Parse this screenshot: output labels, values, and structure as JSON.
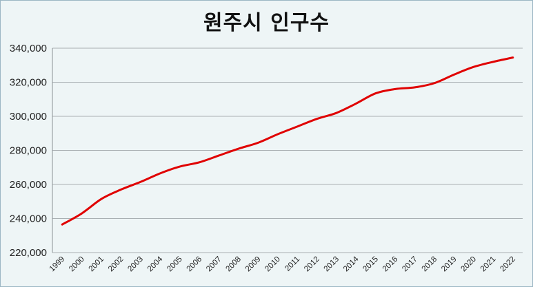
{
  "chart_data": {
    "type": "line",
    "title": "원주시 인구수",
    "xlabel": "",
    "ylabel": "",
    "x": [
      "1999",
      "2000",
      "2001",
      "2002",
      "2003",
      "2004",
      "2005",
      "2006",
      "2007",
      "2008",
      "2009",
      "2010",
      "2011",
      "2012",
      "2013",
      "2014",
      "2015",
      "2016",
      "2017",
      "2018",
      "2019",
      "2020",
      "2021",
      "2022"
    ],
    "series": [
      {
        "values": [
          236500,
          243000,
          251500,
          257000,
          261500,
          266500,
          270500,
          273000,
          277000,
          281000,
          284500,
          289500,
          294000,
          298500,
          302000,
          307500,
          313500,
          316000,
          317000,
          319500,
          324500,
          329000,
          332000,
          334500
        ],
        "color": "#e00000"
      }
    ],
    "ylim": [
      220000,
      340000
    ],
    "yticks": [
      "220,000",
      "240,000",
      "260,000",
      "280,000",
      "300,000",
      "320,000",
      "340,000"
    ],
    "grid": "horizontal",
    "legend": "none"
  }
}
